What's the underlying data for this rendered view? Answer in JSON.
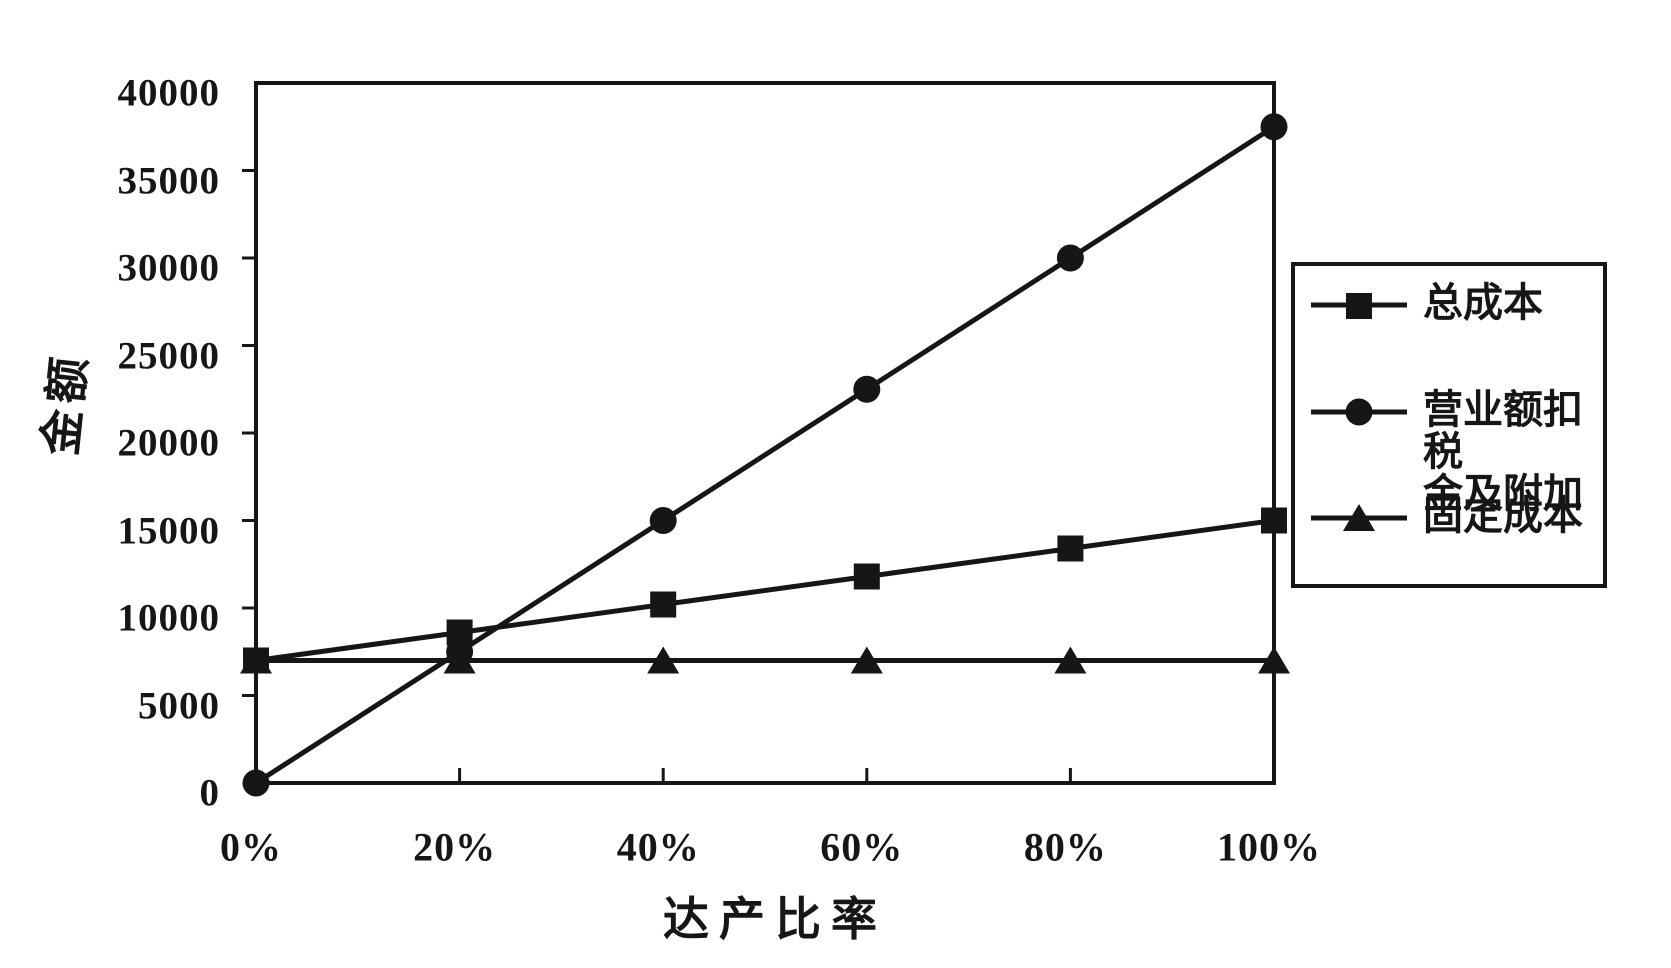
{
  "page": {
    "background": "#ffffff",
    "ink_color": "#161616"
  },
  "chart_data": {
    "type": "line",
    "xlabel": "达产比率",
    "ylabel": "金额",
    "x_tick_labels": [
      "0%",
      "20%",
      "40%",
      "60%",
      "80%",
      "100%"
    ],
    "x_values_percent": [
      0,
      20,
      40,
      60,
      80,
      100
    ],
    "ylim": [
      0,
      40000
    ],
    "y_ticks": [
      0,
      5000,
      10000,
      15000,
      20000,
      25000,
      30000,
      35000,
      40000
    ],
    "y_tick_labels": [
      "0",
      "5000",
      "10000",
      "15000",
      "20000",
      "25000",
      "30000",
      "35000",
      "40000"
    ],
    "grid": false,
    "legend_position": "right",
    "series": [
      {
        "name": "总成本",
        "legend_lines": [
          "总成本"
        ],
        "marker": "square",
        "color": "#161616",
        "values": [
          7000,
          8600,
          10200,
          11800,
          13400,
          15000
        ]
      },
      {
        "name": "营业额扣税金及附加",
        "legend_lines": [
          "营业额扣税",
          "金及附加"
        ],
        "marker": "circle",
        "color": "#161616",
        "values": [
          0,
          7500,
          15000,
          22500,
          30000,
          37500
        ]
      },
      {
        "name": "固定成本",
        "legend_lines": [
          "固定成本"
        ],
        "marker": "triangle",
        "color": "#161616",
        "values": [
          7000,
          7000,
          7000,
          7000,
          7000,
          7000
        ]
      }
    ]
  }
}
